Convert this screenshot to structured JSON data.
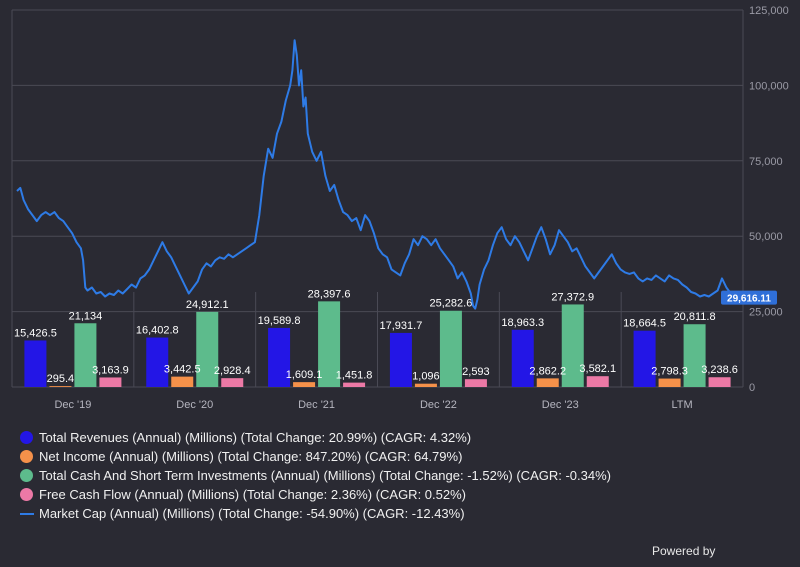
{
  "chart_data": {
    "type": "bar+line",
    "categories": [
      "Dec '19",
      "Dec '20",
      "Dec '21",
      "Dec '22",
      "Dec '23",
      "LTM"
    ],
    "series": [
      {
        "name": "Total Revenues (Annual) (Millions) (Total Change: 20.99%) (CAGR: 4.32%)",
        "color": "#2316e6",
        "values": [
          15426.5,
          16402.8,
          19589.8,
          17931.7,
          18963.3,
          18664.5
        ],
        "labels": [
          "15,426.5",
          "16,402.8",
          "19,589.8",
          "17,931.7",
          "18,963.3",
          "18,664.5"
        ]
      },
      {
        "name": "Net Income (Annual) (Millions) (Total Change: 847.20%) (CAGR: 64.79%)",
        "color": "#f5914a",
        "values": [
          295.4,
          3442.5,
          1609.1,
          1096,
          2862.2,
          2798.3
        ],
        "labels": [
          "295.4",
          "3,442.5",
          "1,609.1",
          "1,096",
          "2,862.2",
          "2,798.3"
        ]
      },
      {
        "name": "Total Cash And Short Term Investments (Annual) (Millions) (Total Change: -1.52%) (CAGR: -0.34%)",
        "color": "#5dbb8c",
        "values": [
          21134,
          24912.1,
          28397.6,
          25282.6,
          27372.9,
          20811.8
        ],
        "labels": [
          "21,134",
          "24,912.1",
          "28,397.6",
          "25,282.6",
          "27,372.9",
          "20,811.8"
        ]
      },
      {
        "name": "Free Cash Flow (Annual) (Millions) (Total Change: 2.36%) (CAGR: 0.52%)",
        "color": "#ec79a6",
        "values": [
          3163.9,
          2928.4,
          1451.8,
          2593,
          3582.1,
          3238.6
        ],
        "labels": [
          "3,163.9",
          "2,928.4",
          "1,451.8",
          "2,593",
          "3,582.1",
          "3,238.6"
        ]
      }
    ],
    "line_series": {
      "name": "Market Cap (Annual) (Millions) (Total Change: -54.90%) (CAGR: -12.43%)",
      "color": "#2e7be6",
      "last_value_label": "29,616.11",
      "points": [
        [
          0,
          65000
        ],
        [
          1.5,
          66000
        ],
        [
          3,
          62000
        ],
        [
          5,
          59000
        ],
        [
          7,
          57000
        ],
        [
          9,
          55000
        ],
        [
          11,
          57000
        ],
        [
          13,
          58000
        ],
        [
          15,
          57000
        ],
        [
          17,
          58000
        ],
        [
          19,
          56000
        ],
        [
          21,
          55000
        ],
        [
          23,
          53000
        ],
        [
          25,
          51000
        ],
        [
          27,
          48000
        ],
        [
          29,
          46000
        ],
        [
          30,
          42000
        ],
        [
          31,
          33000
        ],
        [
          32,
          32000
        ],
        [
          34,
          33000
        ],
        [
          36,
          31000
        ],
        [
          38,
          31500
        ],
        [
          40,
          30000
        ],
        [
          42,
          31000
        ],
        [
          44,
          30500
        ],
        [
          46,
          32000
        ],
        [
          48,
          31000
        ],
        [
          50,
          32500
        ],
        [
          52,
          34000
        ],
        [
          54,
          33000
        ],
        [
          56,
          36000
        ],
        [
          58,
          37000
        ],
        [
          60,
          39000
        ],
        [
          62,
          42000
        ],
        [
          64,
          45000
        ],
        [
          66,
          48000
        ],
        [
          68,
          45000
        ],
        [
          70,
          43000
        ],
        [
          72,
          40000
        ],
        [
          74,
          37000
        ],
        [
          76,
          34000
        ],
        [
          78,
          31000
        ],
        [
          80,
          33000
        ],
        [
          82,
          35000
        ],
        [
          84,
          39000
        ],
        [
          86,
          41000
        ],
        [
          88,
          40000
        ],
        [
          90,
          42000
        ],
        [
          92,
          43000
        ],
        [
          94,
          42500
        ],
        [
          96,
          44000
        ],
        [
          98,
          43000
        ],
        [
          100,
          44000
        ],
        [
          102,
          45000
        ],
        [
          104,
          46000
        ],
        [
          106,
          47000
        ],
        [
          108,
          48000
        ],
        [
          110,
          57000
        ],
        [
          112,
          70000
        ],
        [
          114,
          79000
        ],
        [
          116,
          76000
        ],
        [
          118,
          84000
        ],
        [
          120,
          88000
        ],
        [
          122,
          95000
        ],
        [
          124,
          100000
        ],
        [
          125,
          105000
        ],
        [
          126,
          115000
        ],
        [
          127,
          110000
        ],
        [
          128,
          100000
        ],
        [
          129,
          105000
        ],
        [
          130,
          93000
        ],
        [
          131,
          96000
        ],
        [
          132,
          84000
        ],
        [
          134,
          78000
        ],
        [
          136,
          75000
        ],
        [
          138,
          78000
        ],
        [
          140,
          70000
        ],
        [
          142,
          65000
        ],
        [
          144,
          67000
        ],
        [
          146,
          62000
        ],
        [
          148,
          58000
        ],
        [
          150,
          57000
        ],
        [
          152,
          55000
        ],
        [
          154,
          56000
        ],
        [
          156,
          52000
        ],
        [
          158,
          57000
        ],
        [
          160,
          55000
        ],
        [
          162,
          51000
        ],
        [
          164,
          46000
        ],
        [
          166,
          44000
        ],
        [
          168,
          43000
        ],
        [
          170,
          39000
        ],
        [
          172,
          38000
        ],
        [
          174,
          37000
        ],
        [
          176,
          41000
        ],
        [
          178,
          44000
        ],
        [
          180,
          49000
        ],
        [
          182,
          47000
        ],
        [
          184,
          50000
        ],
        [
          186,
          49000
        ],
        [
          188,
          47000
        ],
        [
          190,
          49000
        ],
        [
          192,
          46000
        ],
        [
          194,
          44000
        ],
        [
          196,
          42000
        ],
        [
          198,
          40000
        ],
        [
          200,
          36000
        ],
        [
          202,
          38000
        ],
        [
          204,
          35000
        ],
        [
          206,
          31000
        ],
        [
          207,
          27000
        ],
        [
          208,
          26000
        ],
        [
          209,
          29000
        ],
        [
          210,
          34000
        ],
        [
          212,
          39000
        ],
        [
          214,
          42000
        ],
        [
          216,
          47000
        ],
        [
          218,
          51000
        ],
        [
          220,
          53000
        ],
        [
          222,
          49000
        ],
        [
          224,
          47000
        ],
        [
          226,
          50000
        ],
        [
          228,
          48000
        ],
        [
          230,
          45000
        ],
        [
          232,
          42000
        ],
        [
          234,
          46000
        ],
        [
          236,
          50000
        ],
        [
          238,
          53000
        ],
        [
          240,
          49000
        ],
        [
          242,
          44000
        ],
        [
          244,
          47000
        ],
        [
          246,
          52000
        ],
        [
          248,
          50000
        ],
        [
          250,
          48000
        ],
        [
          252,
          45000
        ],
        [
          254,
          46000
        ],
        [
          256,
          43000
        ],
        [
          258,
          40000
        ],
        [
          260,
          38000
        ],
        [
          262,
          36000
        ],
        [
          264,
          38000
        ],
        [
          266,
          40000
        ],
        [
          268,
          42000
        ],
        [
          270,
          44000
        ],
        [
          272,
          41000
        ],
        [
          274,
          39000
        ],
        [
          276,
          38000
        ],
        [
          278,
          37500
        ],
        [
          280,
          38000
        ],
        [
          282,
          36000
        ],
        [
          284,
          35000
        ],
        [
          286,
          36000
        ],
        [
          288,
          35500
        ],
        [
          290,
          37000
        ],
        [
          292,
          36000
        ],
        [
          294,
          35000
        ],
        [
          296,
          37000
        ],
        [
          298,
          36000
        ],
        [
          300,
          35500
        ],
        [
          302,
          34000
        ],
        [
          304,
          33000
        ],
        [
          306,
          31500
        ],
        [
          308,
          31000
        ],
        [
          310,
          30000
        ],
        [
          312,
          30500
        ],
        [
          314,
          30000
        ],
        [
          316,
          31000
        ],
        [
          318,
          32000
        ],
        [
          320,
          36000
        ],
        [
          322,
          33000
        ],
        [
          324,
          31000
        ],
        [
          325,
          29616
        ]
      ]
    },
    "x_range": [
      0,
      325
    ],
    "y_axis": {
      "min": 0,
      "max": 125000,
      "ticks": [
        0,
        25000,
        50000,
        75000,
        100000,
        125000
      ],
      "tick_labels": [
        "0",
        "25,000",
        "50,000",
        "75,000",
        "100,000",
        "125,000"
      ],
      "position": "right"
    },
    "grid": true,
    "legend_position": "bottom"
  },
  "footer": {
    "powered_by": "Powered by"
  }
}
